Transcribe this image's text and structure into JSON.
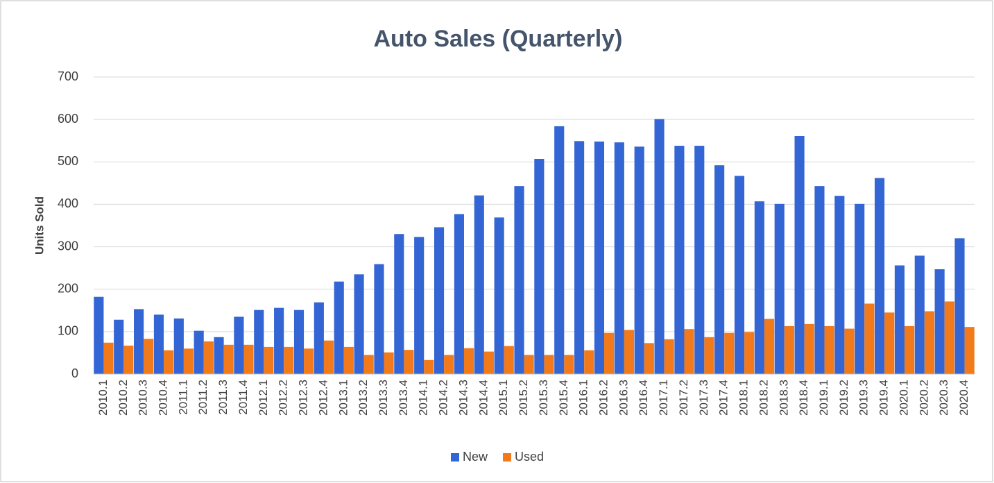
{
  "chart_data": {
    "type": "bar",
    "title": "Auto Sales (Quarterly)",
    "y_label": "Units Sold",
    "categories": [
      "2010.1",
      "2010.2",
      "2010.3",
      "2010.4",
      "2011.1",
      "2011.2",
      "2011.3",
      "2011.4",
      "2012.1",
      "2012.2",
      "2012.3",
      "2012.4",
      "2013.1",
      "2013.2",
      "2013.3",
      "2013.4",
      "2014.1",
      "2014.2",
      "2014.3",
      "2014.4",
      "2015.1",
      "2015.2",
      "2015.3",
      "2015.4",
      "2016.1",
      "2016.2",
      "2016.3",
      "2016.4",
      "2017.1",
      "2017.2",
      "2017.3",
      "2017.4",
      "2018.1",
      "2018.2",
      "2018.3",
      "2018.4",
      "2019.1",
      "2019.2",
      "2019.3",
      "2019.4",
      "2020.1",
      "2020.2",
      "2020.3",
      "2020.4"
    ],
    "series": [
      {
        "name": "New",
        "color": "#3465d4",
        "values": [
          182,
          128,
          153,
          140,
          131,
          102,
          87,
          135,
          151,
          156,
          151,
          169,
          218,
          235,
          259,
          330,
          323,
          346,
          377,
          421,
          369,
          443,
          507,
          584,
          549,
          548,
          546,
          536,
          601,
          538,
          538,
          492,
          467,
          407,
          401,
          561,
          443,
          420,
          401,
          462,
          256,
          279,
          247,
          320
        ]
      },
      {
        "name": "Used",
        "color": "#f27a1a",
        "values": [
          74,
          67,
          83,
          56,
          60,
          77,
          69,
          69,
          64,
          64,
          60,
          79,
          64,
          45,
          51,
          57,
          33,
          45,
          61,
          53,
          66,
          45,
          45,
          45,
          56,
          97,
          104,
          73,
          82,
          106,
          87,
          97,
          99,
          130,
          113,
          118,
          113,
          107,
          166,
          145,
          113,
          148,
          171,
          111
        ]
      }
    ],
    "ylim": [
      0,
      700
    ],
    "yticks": [
      0,
      100,
      200,
      300,
      400,
      500,
      600,
      700
    ],
    "grid": true,
    "legend": "bottom"
  }
}
